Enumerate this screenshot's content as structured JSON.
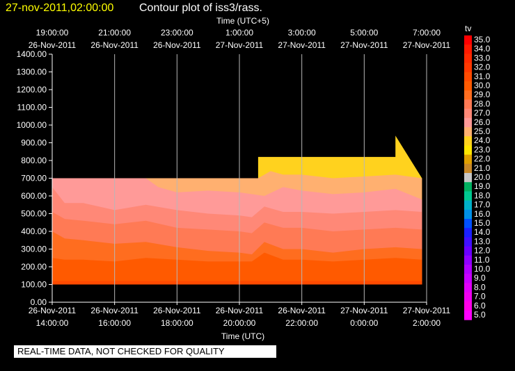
{
  "header": {
    "timestamp": "27-nov-2011,02:00:00",
    "title": "Contour plot of iss3/rass."
  },
  "note": "REAL-TIME DATA, NOT CHECKED FOR QUALITY",
  "chart_data": {
    "type": "area",
    "top_axis": {
      "label": "Time (UTC+5)",
      "ticks": [
        {
          "time": "19:00:00",
          "date": "26-Nov-2011"
        },
        {
          "time": "21:00:00",
          "date": "26-Nov-2011"
        },
        {
          "time": "23:00:00",
          "date": "26-Nov-2011"
        },
        {
          "time": "1:00:00",
          "date": "27-Nov-2011"
        },
        {
          "time": "3:00:00",
          "date": "27-Nov-2011"
        },
        {
          "time": "5:00:00",
          "date": "27-Nov-2011"
        },
        {
          "time": "7:00:00",
          "date": "27-Nov-2011"
        }
      ]
    },
    "bottom_axis": {
      "label": "Time (UTC)",
      "ticks": [
        {
          "date": "26-Nov-2011",
          "time": "14:00:00"
        },
        {
          "date": "26-Nov-2011",
          "time": "16:00:00"
        },
        {
          "date": "26-Nov-2011",
          "time": "18:00:00"
        },
        {
          "date": "26-Nov-2011",
          "time": "20:00:00"
        },
        {
          "date": "26-Nov-2011",
          "time": "22:00:00"
        },
        {
          "date": "27-Nov-2011",
          "time": "0:00:00"
        },
        {
          "date": "27-Nov-2011",
          "time": "2:00:00"
        }
      ]
    },
    "xlim_hours_utc": [
      14,
      26
    ],
    "ylim": [
      0,
      1400
    ],
    "yticks": [
      "0.00",
      "100.00",
      "200.00",
      "300.00",
      "400.00",
      "500.00",
      "600.00",
      "700.00",
      "800.00",
      "900.00",
      "1000.00",
      "1100.00",
      "1200.00",
      "1300.00",
      "1400.00"
    ],
    "grid": "vertical lines at bottom axis ticks",
    "colorbar": {
      "label": "tv",
      "levels": [
        {
          "v": "35.0",
          "color": "#ff0000"
        },
        {
          "v": "34.0",
          "color": "#ff1a00"
        },
        {
          "v": "33.0",
          "color": "#ff2a00"
        },
        {
          "v": "32.0",
          "color": "#ff3800"
        },
        {
          "v": "31.0",
          "color": "#ff4a00"
        },
        {
          "v": "30.0",
          "color": "#ff5a00"
        },
        {
          "v": "29.0",
          "color": "#ff6d1f"
        },
        {
          "v": "28.0",
          "color": "#ff7a55"
        },
        {
          "v": "27.0",
          "color": "#ff8877"
        },
        {
          "v": "26.0",
          "color": "#ff9a98"
        },
        {
          "v": "25.0",
          "color": "#ffb070"
        },
        {
          "v": "24.0",
          "color": "#ffd21e"
        },
        {
          "v": "23.0",
          "color": "#ffe600"
        },
        {
          "v": "22.0",
          "color": "#e0a000"
        },
        {
          "v": "21.0",
          "color": "#c88828"
        },
        {
          "v": "20.0",
          "color": "#c8c8c8"
        },
        {
          "v": "19.0",
          "color": "#00b060"
        },
        {
          "v": "18.0",
          "color": "#00c890"
        },
        {
          "v": "17.0",
          "color": "#00b0c8"
        },
        {
          "v": "16.0",
          "color": "#0090e8"
        },
        {
          "v": "15.0",
          "color": "#0050ff"
        },
        {
          "v": "14.0",
          "color": "#1a20ff"
        },
        {
          "v": "13.0",
          "color": "#4010ff"
        },
        {
          "v": "12.0",
          "color": "#6a00ff"
        },
        {
          "v": "11.0",
          "color": "#9000ff"
        },
        {
          "v": "10.0",
          "color": "#b000ff"
        },
        {
          "v": "9.0",
          "color": "#c800ff"
        },
        {
          "v": "8.0",
          "color": "#e000f8"
        },
        {
          "v": "7.0",
          "color": "#f000f0"
        },
        {
          "v": "6.0",
          "color": "#ff00e8"
        },
        {
          "v": "5.0",
          "color": "#ff00ff"
        }
      ]
    },
    "bands": [
      {
        "level": "31.0",
        "color": "#ff4a00",
        "x": [
          14.0,
          26.0
        ],
        "upper": [
          120,
          120
        ]
      },
      {
        "level": "30.0",
        "color": "#ff5a00",
        "x": [
          14.0,
          14.4,
          15.0,
          16.0,
          17.0,
          18.0,
          19.0,
          20.0,
          20.4,
          20.8,
          21.4,
          22.0,
          23.0,
          24.0,
          25.0,
          26.0
        ],
        "upper": [
          250,
          240,
          240,
          230,
          250,
          240,
          230,
          230,
          230,
          280,
          240,
          240,
          230,
          240,
          250,
          240
        ]
      },
      {
        "level": "29.0",
        "color": "#ff6d1f",
        "x": [
          14.0,
          14.4,
          15.0,
          16.0,
          17.0,
          18.0,
          19.0,
          20.0,
          20.4,
          20.8,
          21.4,
          22.0,
          23.0,
          24.0,
          25.0,
          26.0
        ],
        "upper": [
          400,
          360,
          350,
          330,
          340,
          310,
          290,
          280,
          270,
          340,
          300,
          300,
          280,
          300,
          310,
          300
        ]
      },
      {
        "level": "28.0",
        "color": "#ff7a55",
        "x": [
          14.0,
          14.4,
          15.0,
          16.0,
          17.0,
          18.0,
          19.0,
          20.0,
          20.4,
          20.8,
          21.4,
          22.0,
          23.0,
          24.0,
          25.0,
          26.0
        ],
        "upper": [
          510,
          470,
          460,
          440,
          460,
          420,
          410,
          400,
          390,
          450,
          420,
          420,
          400,
          410,
          420,
          410
        ]
      },
      {
        "level": "27.0",
        "color": "#ff8877",
        "x": [
          14.0,
          14.4,
          15.0,
          16.0,
          17.0,
          18.0,
          19.0,
          20.0,
          20.4,
          20.8,
          21.4,
          22.0,
          23.0,
          24.0,
          25.0,
          26.0
        ],
        "upper": [
          650,
          560,
          560,
          520,
          550,
          520,
          500,
          490,
          480,
          540,
          510,
          510,
          500,
          510,
          520,
          510
        ]
      },
      {
        "level": "26.0",
        "color": "#ff9a98",
        "x": [
          14.0,
          17.0,
          17.4,
          18.0,
          19.0,
          20.0,
          20.8,
          21.4,
          22.0,
          23.0,
          24.0,
          25.0,
          26.0
        ],
        "upper": [
          700,
          700,
          650,
          620,
          630,
          620,
          600,
          650,
          630,
          610,
          620,
          640,
          580
        ]
      },
      {
        "level": "25.0",
        "color": "#ffb070",
        "x": [
          14.0,
          17.0,
          17.4,
          18.0,
          19.0,
          20.0,
          20.6,
          21.0,
          21.4,
          22.0,
          23.0,
          24.0,
          25.0,
          26.0
        ],
        "upper": [
          700,
          700,
          700,
          700,
          700,
          700,
          700,
          740,
          720,
          720,
          700,
          710,
          720,
          700
        ]
      },
      {
        "level": "23.0",
        "color": "#ffd21e",
        "x": [
          14.0,
          20.6,
          20.6,
          25.0,
          25.0,
          26.0
        ],
        "upper": [
          700,
          700,
          820,
          820,
          940,
          700
        ]
      }
    ]
  }
}
